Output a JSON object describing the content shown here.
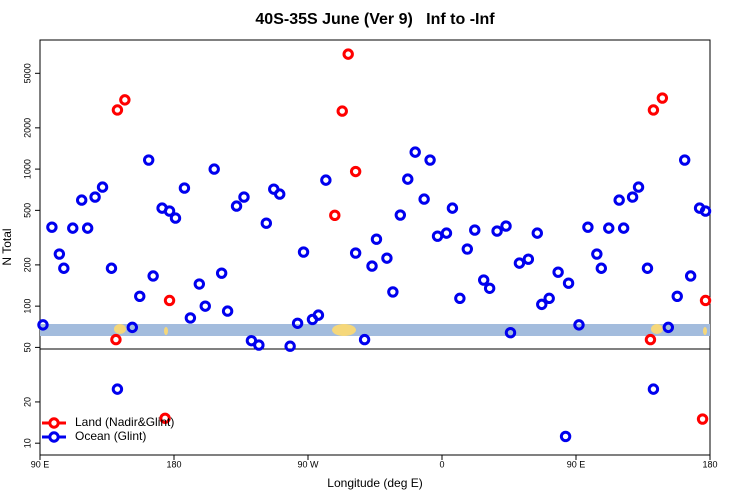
{
  "chart_data": {
    "type": "scatter",
    "title": "40S-35S June (Ver 9)   Inf to -Inf",
    "x_label": "Longitude (deg E)",
    "y_label": "N Total",
    "xlim": [
      90,
      540
    ],
    "ylim": [
      8.2,
      8750
    ],
    "log_y": true,
    "legend": "lower left",
    "xticks": [
      {
        "value": 90,
        "label": "90 E"
      },
      {
        "value": 180,
        "label": "180"
      },
      {
        "value": 270,
        "label": "90 W"
      },
      {
        "value": 360,
        "label": "0"
      },
      {
        "value": 450,
        "label": "90 E"
      },
      {
        "value": 540,
        "label": "180"
      }
    ],
    "yticks": [
      10,
      20,
      50,
      100,
      200,
      500,
      1000,
      2000,
      5000
    ],
    "series": [
      {
        "name": "Land (Nadir&Glint)",
        "color": "#ff0000",
        "x": [
          141,
          142,
          147,
          177,
          174,
          297,
          293,
          288,
          302,
          500,
          502,
          508,
          537,
          535
        ],
        "values": [
          57,
          2700,
          3200,
          110,
          15.2,
          6900,
          2650,
          460,
          960,
          57,
          2700,
          3300,
          110,
          15
        ]
      },
      {
        "name": "Ocean (Glint)",
        "color": "#0000ee",
        "x": [
          92,
          98,
          103,
          106,
          112,
          118,
          122,
          127,
          132,
          138,
          142,
          152,
          157,
          163,
          166,
          172,
          177,
          181,
          187,
          191,
          197,
          201,
          207,
          212,
          216,
          222,
          227,
          232,
          237,
          242,
          247,
          251,
          258,
          263,
          267,
          273,
          277,
          282,
          302,
          308,
          313,
          316,
          323,
          327,
          332,
          337,
          342,
          348,
          352,
          357,
          363,
          367,
          372,
          377,
          382,
          388,
          392,
          397,
          403,
          406,
          412,
          418,
          424,
          427,
          432,
          438,
          443,
          445,
          452,
          458,
          464,
          467,
          472,
          479,
          482,
          488,
          492,
          498,
          502,
          512,
          518,
          523,
          527,
          533,
          537
        ],
        "values": [
          73,
          377,
          240,
          189,
          371,
          594,
          371,
          625,
          739,
          189,
          24.8,
          70,
          118,
          1164,
          166,
          519,
          494,
          439,
          727,
          82,
          145,
          100,
          1000,
          174,
          92,
          537,
          625,
          56,
          52,
          403,
          714,
          657,
          51,
          75,
          248,
          80,
          86,
          831,
          244,
          57,
          196,
          308,
          224,
          127,
          462,
          845,
          1330,
          604,
          1164,
          324,
          341,
          519,
          114,
          261,
          359,
          155,
          135,
          353,
          384,
          64,
          206,
          220,
          341,
          103,
          114,
          177,
          11.2,
          147,
          73,
          377,
          240,
          189,
          371,
          594,
          371,
          625,
          739,
          189,
          24.8,
          70,
          118,
          1164,
          166,
          519,
          494
        ]
      }
    ]
  }
}
